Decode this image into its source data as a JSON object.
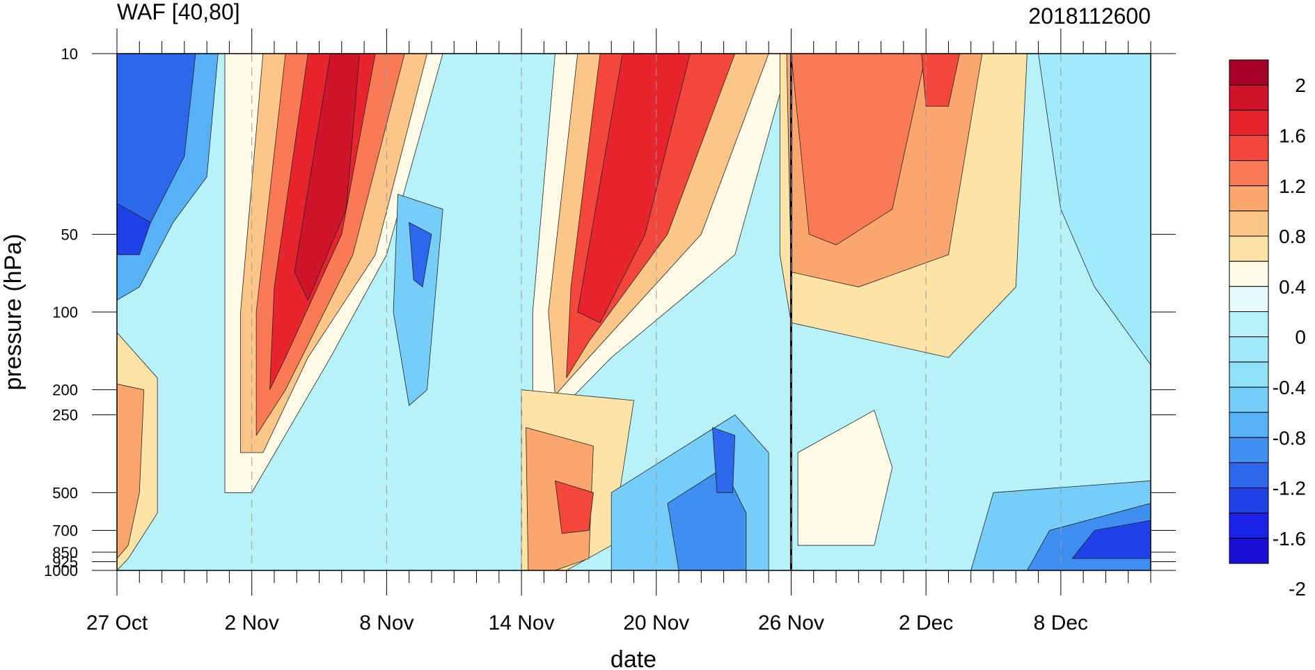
{
  "title_left": "WAF [40,80]",
  "title_right": "2018112600",
  "chart_data": {
    "type": "heatmap",
    "title": "WAF [40,80]",
    "subtitle": "2018112600",
    "xlabel": "date",
    "ylabel": "pressure (hPa)",
    "x_ticks": [
      "27 Oct",
      "2 Nov",
      "8 Nov",
      "14 Nov",
      "20 Nov",
      "26 Nov",
      "2 Dec",
      "8 Dec"
    ],
    "x_start": "27 Oct",
    "x_end": "12 Dec",
    "y_ticks": [
      10,
      50,
      100,
      200,
      250,
      500,
      700,
      850,
      925,
      1000
    ],
    "y_scale": "log",
    "y_reversed": true,
    "ylim": [
      10,
      1000
    ],
    "marker_date": "26 Nov",
    "colorbar": {
      "labels": [
        "2",
        "1.6",
        "1.2",
        "0.8",
        "0.4",
        "0",
        "-0.4",
        "-0.8",
        "-1.2",
        "-1.6",
        "-2"
      ],
      "colors": [
        "#a50026",
        "#d0142c",
        "#e8252f",
        "#f2473a",
        "#fa7a56",
        "#fca66f",
        "#fdc689",
        "#fee3a6",
        "#fffbe6",
        "#e6fbfd",
        "#b7f1fa",
        "#a1eafb",
        "#8fe0f9",
        "#75cdf8",
        "#58b0f6",
        "#3f8ff0",
        "#2c67ec",
        "#2040e8",
        "#1922e6",
        "#1a0fd4"
      ]
    },
    "contour_fields": [
      {
        "date": "27 Oct",
        "values": {
          "10": -1.3,
          "50": -1.4,
          "100": -0.3,
          "200": 0.6,
          "500": 0.5,
          "1000": 0.3
        }
      },
      {
        "date": "2 Nov",
        "values": {
          "10": 0.2,
          "50": 0.3,
          "100": 0.3,
          "200": 0.9,
          "500": 0.1,
          "1000": -0.4
        }
      },
      {
        "date": "5 Nov",
        "values": {
          "10": 1.6,
          "50": 1.7,
          "100": 1.4,
          "200": -0.6,
          "500": -0.2,
          "1000": -0.5
        }
      },
      {
        "date": "11 Nov",
        "values": {
          "10": -0.4,
          "50": -1.2,
          "100": -0.8,
          "200": -0.6,
          "500": 0.2,
          "1000": -0.3
        }
      },
      {
        "date": "16 Nov",
        "values": {
          "10": -0.5,
          "50": -0.4,
          "100": -0.4,
          "200": 0.1,
          "500": 1.0,
          "1000": 0.8
        }
      },
      {
        "date": "20 Nov",
        "values": {
          "10": 1.6,
          "50": 1.4,
          "100": 1.5,
          "200": 0.6,
          "500": -0.7,
          "1000": -0.9
        }
      },
      {
        "date": "24 Nov",
        "values": {
          "10": 0.8,
          "50": 0.5,
          "100": -0.3,
          "200": -0.8,
          "500": -1.1,
          "1000": -1.3
        }
      },
      {
        "date": "28 Nov",
        "values": {
          "10": 0.8,
          "50": 0.7,
          "100": 0.4,
          "200": -0.3,
          "500": 0.1,
          "1000": 0.1
        }
      },
      {
        "date": "2 Dec",
        "values": {
          "10": 0.7,
          "50": 0.6,
          "100": 0.1,
          "200": -0.3,
          "500": -0.7,
          "1000": -0.6
        }
      },
      {
        "date": "8 Dec",
        "values": {
          "10": -0.5,
          "50": -0.4,
          "100": -0.2,
          "200": -0.4,
          "500": -0.8,
          "1000": -1.5
        }
      },
      {
        "date": "12 Dec",
        "values": {
          "10": -0.4,
          "50": -0.4,
          "100": -0.3,
          "200": -0.5,
          "500": -1.0,
          "1000": -1.6
        }
      }
    ]
  }
}
